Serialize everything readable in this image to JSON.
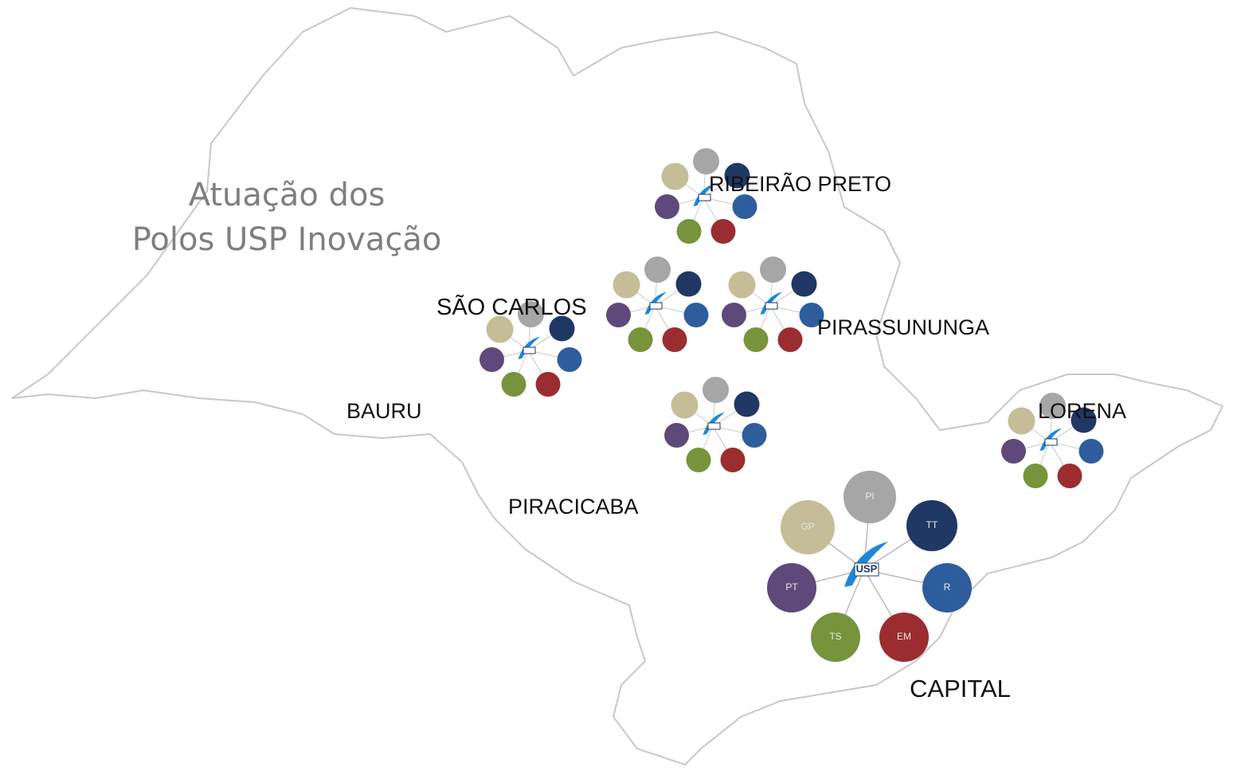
{
  "title": {
    "line1": "Atuação dos",
    "line2": "Polos USP Inovação"
  },
  "cities": [
    "RIBEIRÃO PRETO",
    "SÃO CARLOS",
    "PIRASSUNUNGA",
    "BAURU",
    "LORENA",
    "PIRACICABA",
    "CAPITAL"
  ],
  "capital_hub": {
    "center": "USP",
    "nodes": [
      "PI",
      "TT",
      "R",
      "EM",
      "TS",
      "PT",
      "GP"
    ]
  }
}
